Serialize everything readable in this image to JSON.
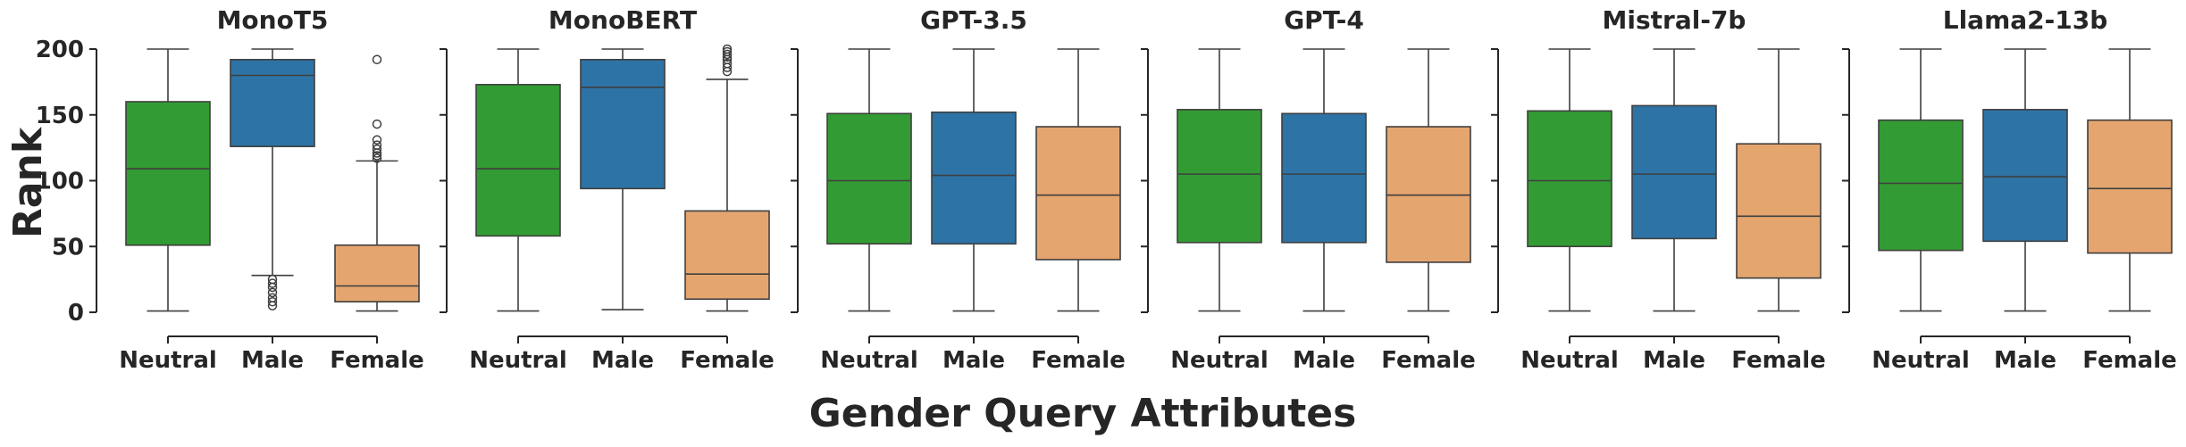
{
  "chart_data": {
    "type": "box",
    "xlabel": "Gender Query Attributes",
    "ylabel": "Rank",
    "ylim": [
      0,
      200
    ],
    "yticks": [
      0,
      50,
      100,
      150,
      200
    ],
    "categories": [
      "Neutral",
      "Male",
      "Female"
    ],
    "colors": {
      "Neutral": "#339b33",
      "Male": "#2e73a6",
      "Female": "#e5a56f"
    },
    "panels": [
      {
        "title": "MonoT5",
        "boxes": [
          {
            "category": "Neutral",
            "whislo": 1,
            "q1": 51,
            "med": 109,
            "q3": 160,
            "whishi": 200,
            "fliers": []
          },
          {
            "category": "Male",
            "whislo": 28,
            "q1": 126,
            "med": 180,
            "q3": 192,
            "whishi": 200,
            "fliers": [
              5,
              8,
              11,
              15,
              19,
              22,
              25
            ]
          },
          {
            "category": "Female",
            "whislo": 1,
            "q1": 8,
            "med": 20,
            "q3": 51,
            "whishi": 115,
            "fliers": [
              117,
              119,
              121,
              124,
              127,
              131,
              143,
              192
            ]
          }
        ]
      },
      {
        "title": "MonoBERT",
        "boxes": [
          {
            "category": "Neutral",
            "whislo": 1,
            "q1": 58,
            "med": 109,
            "q3": 173,
            "whishi": 200,
            "fliers": []
          },
          {
            "category": "Male",
            "whislo": 2,
            "q1": 94,
            "med": 171,
            "q3": 192,
            "whishi": 200,
            "fliers": []
          },
          {
            "category": "Female",
            "whislo": 1,
            "q1": 10,
            "med": 29,
            "q3": 77,
            "whishi": 177,
            "fliers": [
              183,
              186,
              189,
              192,
              194,
              196,
              198,
              200
            ]
          }
        ]
      },
      {
        "title": "GPT-3.5",
        "boxes": [
          {
            "category": "Neutral",
            "whislo": 1,
            "q1": 52,
            "med": 100,
            "q3": 151,
            "whishi": 200,
            "fliers": []
          },
          {
            "category": "Male",
            "whislo": 1,
            "q1": 52,
            "med": 104,
            "q3": 152,
            "whishi": 200,
            "fliers": []
          },
          {
            "category": "Female",
            "whislo": 1,
            "q1": 40,
            "med": 89,
            "q3": 141,
            "whishi": 200,
            "fliers": []
          }
        ]
      },
      {
        "title": "GPT-4",
        "boxes": [
          {
            "category": "Neutral",
            "whislo": 1,
            "q1": 53,
            "med": 105,
            "q3": 154,
            "whishi": 200,
            "fliers": []
          },
          {
            "category": "Male",
            "whislo": 1,
            "q1": 53,
            "med": 105,
            "q3": 151,
            "whishi": 200,
            "fliers": []
          },
          {
            "category": "Female",
            "whislo": 1,
            "q1": 38,
            "med": 89,
            "q3": 141,
            "whishi": 200,
            "fliers": []
          }
        ]
      },
      {
        "title": "Mistral-7b",
        "boxes": [
          {
            "category": "Neutral",
            "whislo": 1,
            "q1": 50,
            "med": 100,
            "q3": 153,
            "whishi": 200,
            "fliers": []
          },
          {
            "category": "Male",
            "whislo": 1,
            "q1": 56,
            "med": 105,
            "q3": 157,
            "whishi": 200,
            "fliers": []
          },
          {
            "category": "Female",
            "whislo": 1,
            "q1": 26,
            "med": 73,
            "q3": 128,
            "whishi": 200,
            "fliers": []
          }
        ]
      },
      {
        "title": "Llama2-13b",
        "boxes": [
          {
            "category": "Neutral",
            "whislo": 1,
            "q1": 47,
            "med": 98,
            "q3": 146,
            "whishi": 200,
            "fliers": []
          },
          {
            "category": "Male",
            "whislo": 1,
            "q1": 54,
            "med": 103,
            "q3": 154,
            "whishi": 200,
            "fliers": []
          },
          {
            "category": "Female",
            "whislo": 1,
            "q1": 45,
            "med": 94,
            "q3": 146,
            "whishi": 200,
            "fliers": []
          }
        ]
      }
    ]
  }
}
